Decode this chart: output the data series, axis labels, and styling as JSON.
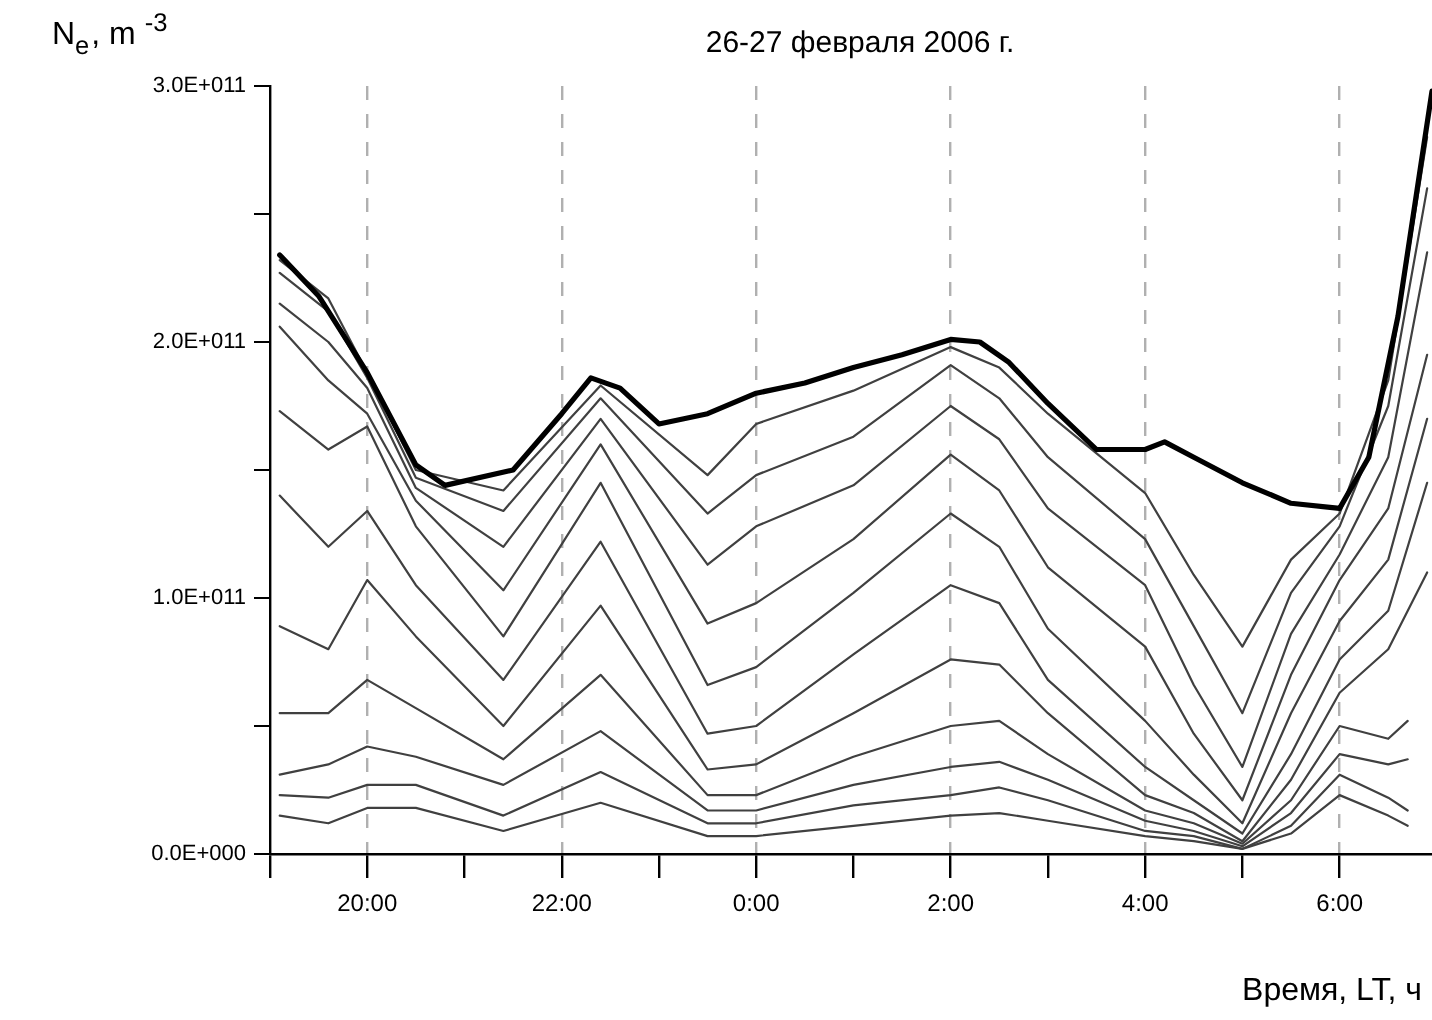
{
  "chart_data": {
    "type": "line",
    "title": "26-27 февраля 2006 г.",
    "xlabel": "Время, LT, ч",
    "ylabel": "N$_{e}$, m $^{-3}$",
    "xlim": [
      "2006-02-26T19:00",
      "2006-02-27T06:57"
    ],
    "xticks": [
      {
        "value": "2006-02-26T19:00",
        "label": null
      },
      {
        "value": "2006-02-26T20:00",
        "label": "20:00"
      },
      {
        "value": "2006-02-26T21:00",
        "label": null
      },
      {
        "value": "2006-02-26T22:00",
        "label": "22:00"
      },
      {
        "value": "2006-02-26T23:00",
        "label": null
      },
      {
        "value": "2006-02-27T00:00",
        "label": "0:00"
      },
      {
        "value": "2006-02-27T01:00",
        "label": null
      },
      {
        "value": "2006-02-27T02:00",
        "label": "2:00"
      },
      {
        "value": "2006-02-27T03:00",
        "label": null
      },
      {
        "value": "2006-02-27T04:00",
        "label": "4:00"
      },
      {
        "value": "2006-02-27T05:00",
        "label": null
      },
      {
        "value": "2006-02-27T06:00",
        "label": "6:00"
      }
    ],
    "ylim": [
      0,
      300000000000.0
    ],
    "yticks": [
      {
        "value": 0,
        "label": "0.0E+000"
      },
      {
        "value": 50000000000.0,
        "label": null
      },
      {
        "value": 100000000000.0,
        "label": "1.0E+011"
      },
      {
        "value": 150000000000.0,
        "label": null
      },
      {
        "value": 200000000000.0,
        "label": "2.0E+011"
      },
      {
        "value": 250000000000.0,
        "label": null
      },
      {
        "value": 300000000000.0,
        "label": "3.0E+011"
      }
    ],
    "grid": "x",
    "marker": "none",
    "line_style": "solid",
    "series": [
      {
        "color": "#000000",
        "x": [
          "2006-02-26T19:06",
          "2006-02-26T19:30",
          "2006-02-26T20:00",
          "2006-02-26T20:30",
          "2006-02-26T20:48",
          "2006-02-26T21:30",
          "2006-02-26T22:00",
          "2006-02-26T22:18",
          "2006-02-26T22:36",
          "2006-02-26T23:00",
          "2006-02-26T23:30",
          "2006-02-27T00:00",
          "2006-02-27T00:30",
          "2006-02-27T01:00",
          "2006-02-27T01:30",
          "2006-02-27T02:00",
          "2006-02-27T02:18",
          "2006-02-27T02:36",
          "2006-02-27T03:00",
          "2006-02-27T03:30",
          "2006-02-27T04:00",
          "2006-02-27T04:12",
          "2006-02-27T04:30",
          "2006-02-27T05:00",
          "2006-02-27T05:30",
          "2006-02-27T06:00",
          "2006-02-27T06:18",
          "2006-02-27T06:36",
          "2006-02-27T06:57"
        ],
        "values": [
          234000000000.0,
          218000000000.0,
          188000000000.0,
          152000000000.0,
          144000000000.0,
          150000000000.0,
          172000000000.0,
          186000000000.0,
          182000000000.0,
          168000000000.0,
          172000000000.0,
          180000000000.0,
          184000000000.0,
          190000000000.0,
          195000000000.0,
          201000000000.0,
          200000000000.0,
          192000000000.0,
          176000000000.0,
          158000000000.0,
          158000000000.0,
          161000000000.0,
          155000000000.0,
          145000000000.0,
          137000000000.0,
          135000000000.0,
          155000000000.0,
          210000000000.0,
          298000000000.0
        ]
      },
      {
        "color": "#404040",
        "x": [
          "2006-02-26T19:06",
          "2006-02-26T19:36",
          "2006-02-26T20:00",
          "2006-02-26T20:30",
          "2006-02-26T21:24",
          "2006-02-26T22:24",
          "2006-02-26T23:30",
          "2006-02-27T00:00",
          "2006-02-27T01:00",
          "2006-02-27T02:00",
          "2006-02-27T02:30",
          "2006-02-27T03:00",
          "2006-02-27T04:00",
          "2006-02-27T04:30",
          "2006-02-27T05:00",
          "2006-02-27T05:30",
          "2006-02-27T06:00",
          "2006-02-27T06:30",
          "2006-02-27T06:54"
        ],
        "values": [
          232000000000.0,
          217000000000.0,
          188000000000.0,
          150000000000.0,
          142000000000.0,
          183000000000.0,
          148000000000.0,
          168000000000.0,
          181000000000.0,
          198000000000.0,
          190000000000.0,
          172000000000.0,
          141000000000.0,
          109000000000.0,
          81000000000.0,
          115000000000.0,
          133000000000.0,
          185000000000.0,
          280000000000.0
        ]
      },
      {
        "color": "#404040",
        "x": [
          "2006-02-26T19:06",
          "2006-02-26T19:36",
          "2006-02-26T20:00",
          "2006-02-26T20:30",
          "2006-02-26T21:24",
          "2006-02-26T22:24",
          "2006-02-26T23:30",
          "2006-02-27T00:00",
          "2006-02-27T01:00",
          "2006-02-27T02:00",
          "2006-02-27T02:30",
          "2006-02-27T03:00",
          "2006-02-27T04:00",
          "2006-02-27T04:30",
          "2006-02-27T05:00",
          "2006-02-27T05:30",
          "2006-02-27T06:00",
          "2006-02-27T06:30",
          "2006-02-27T06:54"
        ],
        "values": [
          227000000000.0,
          212000000000.0,
          186000000000.0,
          147000000000.0,
          134000000000.0,
          178000000000.0,
          133000000000.0,
          148000000000.0,
          163000000000.0,
          191000000000.0,
          178000000000.0,
          155000000000.0,
          123000000000.0,
          89000000000.0,
          55000000000.0,
          102000000000.0,
          128000000000.0,
          175000000000.0,
          260000000000.0
        ]
      },
      {
        "color": "#404040",
        "x": [
          "2006-02-26T19:06",
          "2006-02-26T19:36",
          "2006-02-26T20:00",
          "2006-02-26T20:30",
          "2006-02-26T21:24",
          "2006-02-26T22:24",
          "2006-02-26T23:30",
          "2006-02-27T00:00",
          "2006-02-27T01:00",
          "2006-02-27T02:00",
          "2006-02-27T02:30",
          "2006-02-27T03:00",
          "2006-02-27T04:00",
          "2006-02-27T04:30",
          "2006-02-27T05:00",
          "2006-02-27T05:30",
          "2006-02-27T06:00",
          "2006-02-27T06:30",
          "2006-02-27T06:54"
        ],
        "values": [
          215000000000.0,
          200000000000.0,
          182000000000.0,
          143000000000.0,
          120000000000.0,
          170000000000.0,
          113000000000.0,
          128000000000.0,
          144000000000.0,
          175000000000.0,
          162000000000.0,
          135000000000.0,
          105000000000.0,
          66000000000.0,
          34000000000.0,
          86000000000.0,
          117000000000.0,
          155000000000.0,
          235000000000.0
        ]
      },
      {
        "color": "#404040",
        "x": [
          "2006-02-26T19:06",
          "2006-02-26T19:36",
          "2006-02-26T20:00",
          "2006-02-26T20:30",
          "2006-02-26T21:24",
          "2006-02-26T22:24",
          "2006-02-26T23:30",
          "2006-02-27T00:00",
          "2006-02-27T01:00",
          "2006-02-27T02:00",
          "2006-02-27T02:30",
          "2006-02-27T03:00",
          "2006-02-27T04:00",
          "2006-02-27T04:30",
          "2006-02-27T05:00",
          "2006-02-27T05:30",
          "2006-02-27T06:00",
          "2006-02-27T06:30",
          "2006-02-27T06:54"
        ],
        "values": [
          206000000000.0,
          185000000000.0,
          172000000000.0,
          138000000000.0,
          103000000000.0,
          160000000000.0,
          90000000000.0,
          98000000000.0,
          123000000000.0,
          156000000000.0,
          142000000000.0,
          112000000000.0,
          81000000000.0,
          47000000000.0,
          21000000000.0,
          70000000000.0,
          107000000000.0,
          135000000000.0,
          195000000000.0
        ]
      },
      {
        "color": "#404040",
        "x": [
          "2006-02-26T19:06",
          "2006-02-26T19:36",
          "2006-02-26T20:00",
          "2006-02-26T20:30",
          "2006-02-26T21:24",
          "2006-02-26T22:24",
          "2006-02-26T23:30",
          "2006-02-27T00:00",
          "2006-02-27T01:00",
          "2006-02-27T02:00",
          "2006-02-27T02:30",
          "2006-02-27T03:00",
          "2006-02-27T04:00",
          "2006-02-27T04:30",
          "2006-02-27T05:00",
          "2006-02-27T05:30",
          "2006-02-27T06:00",
          "2006-02-27T06:30",
          "2006-02-27T06:54"
        ],
        "values": [
          173000000000.0,
          158000000000.0,
          167000000000.0,
          128000000000.0,
          85000000000.0,
          145000000000.0,
          66000000000.0,
          73000000000.0,
          102000000000.0,
          133000000000.0,
          120000000000.0,
          88000000000.0,
          52000000000.0,
          31000000000.0,
          12000000000.0,
          55000000000.0,
          91000000000.0,
          115000000000.0,
          170000000000.0
        ]
      },
      {
        "color": "#404040",
        "x": [
          "2006-02-26T19:06",
          "2006-02-26T19:36",
          "2006-02-26T20:00",
          "2006-02-26T20:30",
          "2006-02-26T21:24",
          "2006-02-26T22:24",
          "2006-02-26T23:30",
          "2006-02-27T00:00",
          "2006-02-27T01:00",
          "2006-02-27T02:00",
          "2006-02-27T02:30",
          "2006-02-27T03:00",
          "2006-02-27T04:00",
          "2006-02-27T04:30",
          "2006-02-27T05:00",
          "2006-02-27T05:30",
          "2006-02-27T06:00",
          "2006-02-27T06:30",
          "2006-02-27T06:54"
        ],
        "values": [
          140000000000.0,
          120000000000.0,
          134000000000.0,
          105000000000.0,
          68000000000.0,
          122000000000.0,
          47000000000.0,
          50000000000.0,
          78000000000.0,
          105000000000.0,
          98000000000.0,
          68000000000.0,
          34000000000.0,
          21000000000.0,
          8000000000.0,
          39000000000.0,
          76000000000.0,
          95000000000.0,
          145000000000.0
        ]
      },
      {
        "color": "#404040",
        "x": [
          "2006-02-26T19:06",
          "2006-02-26T19:36",
          "2006-02-26T20:00",
          "2006-02-26T20:30",
          "2006-02-26T21:24",
          "2006-02-26T22:24",
          "2006-02-26T23:30",
          "2006-02-27T00:00",
          "2006-02-27T01:00",
          "2006-02-27T02:00",
          "2006-02-27T02:30",
          "2006-02-27T03:00",
          "2006-02-27T04:00",
          "2006-02-27T04:30",
          "2006-02-27T05:00",
          "2006-02-27T05:30",
          "2006-02-27T06:00",
          "2006-02-27T06:30",
          "2006-02-27T06:54"
        ],
        "values": [
          89000000000.0,
          80000000000.0,
          107000000000.0,
          85000000000.0,
          50000000000.0,
          97000000000.0,
          33000000000.0,
          35000000000.0,
          55000000000.0,
          76000000000.0,
          74000000000.0,
          55000000000.0,
          23000000000.0,
          16000000000.0,
          5000000000.0,
          29000000000.0,
          63000000000.0,
          80000000000.0,
          110000000000.0
        ]
      },
      {
        "color": "#404040",
        "x": [
          "2006-02-26T19:06",
          "2006-02-26T19:36",
          "2006-02-26T20:00",
          "2006-02-26T20:30",
          "2006-02-26T21:24",
          "2006-02-26T22:24",
          "2006-02-26T23:30",
          "2006-02-27T00:00",
          "2006-02-27T01:00",
          "2006-02-27T02:00",
          "2006-02-27T02:30",
          "2006-02-27T03:00",
          "2006-02-27T04:00",
          "2006-02-27T04:30",
          "2006-02-27T05:00",
          "2006-02-27T05:30",
          "2006-02-27T06:00",
          "2006-02-27T06:30",
          "2006-02-27T06:42"
        ],
        "values": [
          55000000000.0,
          55000000000.0,
          68000000000.0,
          57000000000.0,
          37000000000.0,
          70000000000.0,
          23000000000.0,
          23000000000.0,
          38000000000.0,
          50000000000.0,
          52000000000.0,
          39000000000.0,
          17000000000.0,
          12000000000.0,
          4000000000.0,
          21000000000.0,
          50000000000.0,
          45000000000.0,
          52000000000.0
        ]
      },
      {
        "color": "#404040",
        "x": [
          "2006-02-26T19:06",
          "2006-02-26T19:36",
          "2006-02-26T20:00",
          "2006-02-26T20:30",
          "2006-02-26T21:24",
          "2006-02-26T22:24",
          "2006-02-26T23:30",
          "2006-02-27T00:00",
          "2006-02-27T01:00",
          "2006-02-27T02:00",
          "2006-02-27T02:30",
          "2006-02-27T03:00",
          "2006-02-27T04:00",
          "2006-02-27T04:30",
          "2006-02-27T05:00",
          "2006-02-27T05:30",
          "2006-02-27T06:00",
          "2006-02-27T06:30",
          "2006-02-27T06:42"
        ],
        "values": [
          31000000000.0,
          35000000000.0,
          42000000000.0,
          38000000000.0,
          27000000000.0,
          48000000000.0,
          17000000000.0,
          17000000000.0,
          27000000000.0,
          34000000000.0,
          36000000000.0,
          29000000000.0,
          13000000000.0,
          9000000000.0,
          3000000000.0,
          16000000000.0,
          39000000000.0,
          35000000000.0,
          37000000000.0
        ]
      },
      {
        "color": "#404040",
        "x": [
          "2006-02-26T19:06",
          "2006-02-26T19:36",
          "2006-02-26T20:00",
          "2006-02-26T20:30",
          "2006-02-26T21:24",
          "2006-02-26T22:24",
          "2006-02-26T23:30",
          "2006-02-27T00:00",
          "2006-02-27T01:00",
          "2006-02-27T02:00",
          "2006-02-27T02:30",
          "2006-02-27T03:00",
          "2006-02-27T04:00",
          "2006-02-27T04:30",
          "2006-02-27T05:00",
          "2006-02-27T05:30",
          "2006-02-27T06:00",
          "2006-02-27T06:30",
          "2006-02-27T06:42"
        ],
        "values": [
          23000000000.0,
          22000000000.0,
          27000000000.0,
          27000000000.0,
          15000000000.0,
          32000000000.0,
          12000000000.0,
          12000000000.0,
          19000000000.0,
          23000000000.0,
          26000000000.0,
          21000000000.0,
          9000000000.0,
          7000000000.0,
          2000000000.0,
          11000000000.0,
          31000000000.0,
          22000000000.0,
          17000000000.0
        ]
      },
      {
        "color": "#404040",
        "x": [
          "2006-02-26T19:06",
          "2006-02-26T19:36",
          "2006-02-26T20:00",
          "2006-02-26T20:30",
          "2006-02-26T21:24",
          "2006-02-26T22:24",
          "2006-02-26T23:30",
          "2006-02-27T00:00",
          "2006-02-27T01:00",
          "2006-02-27T02:00",
          "2006-02-27T02:30",
          "2006-02-27T03:00",
          "2006-02-27T04:00",
          "2006-02-27T04:30",
          "2006-02-27T05:00",
          "2006-02-27T05:30",
          "2006-02-27T06:00",
          "2006-02-27T06:30",
          "2006-02-27T06:42"
        ],
        "values": [
          15000000000.0,
          12000000000.0,
          18000000000.0,
          18000000000.0,
          9000000000.0,
          20000000000.0,
          7000000000.0,
          7000000000.0,
          11000000000.0,
          15000000000.0,
          16000000000.0,
          13000000000.0,
          7000000000.0,
          5000000000.0,
          2000000000.0,
          8000000000.0,
          23000000000.0,
          15000000000.0,
          11000000000.0
        ]
      }
    ]
  }
}
